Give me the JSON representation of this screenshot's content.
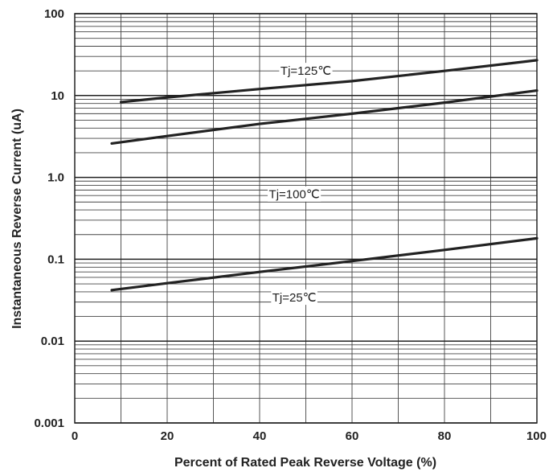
{
  "chart_data": {
    "type": "line",
    "title": "",
    "xlabel": "Percent of Rated Peak Reverse Voltage (%)",
    "ylabel": "Instantaneous Reverse Current (uA)",
    "xlim": [
      0,
      100
    ],
    "ylim": [
      0.001,
      100
    ],
    "yscale": "log",
    "grid": true,
    "x_ticks": [
      0,
      20,
      40,
      60,
      80,
      100
    ],
    "x_tick_labels": [
      "0",
      "20",
      "40",
      "60",
      "80",
      "100"
    ],
    "y_ticks": [
      0.001,
      0.01,
      0.1,
      1.0,
      10,
      100
    ],
    "y_tick_labels": [
      "0.001",
      "0.01",
      "0.1",
      "1.0",
      "10",
      "100"
    ],
    "series": [
      {
        "name": "Tj=125℃",
        "x": [
          10,
          20,
          40,
          60,
          80,
          100
        ],
        "y": [
          8.3,
          9.5,
          12,
          15,
          20,
          27
        ]
      },
      {
        "name": "Tj=100℃",
        "x": [
          8,
          20,
          40,
          60,
          80,
          100
        ],
        "y": [
          2.6,
          3.2,
          4.5,
          6.0,
          8.2,
          11.5
        ]
      },
      {
        "name": "Tj=25℃",
        "x": [
          8,
          20,
          40,
          60,
          80,
          100
        ],
        "y": [
          0.042,
          0.051,
          0.07,
          0.095,
          0.13,
          0.18
        ]
      }
    ],
    "annotations": [
      {
        "text": "Tj=125℃",
        "x": 50,
        "y": 20
      },
      {
        "text": "Tj=100℃",
        "x": 47.5,
        "y": 0.62
      },
      {
        "text": "Tj=25℃",
        "x": 47.5,
        "y": 0.034
      }
    ]
  }
}
